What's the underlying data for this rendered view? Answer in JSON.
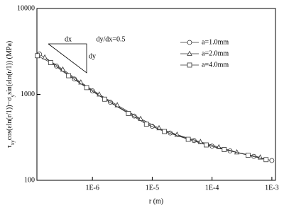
{
  "chart_data": {
    "type": "line",
    "log_x": true,
    "log_y": true,
    "x_label": "r (m)",
    "y_label": [
      "τ",
      "xy",
      "cos(εln(r/1))−σ",
      "y",
      "sin(εln(r/1)) (MPa)"
    ],
    "xlim": [
      1.18e-07,
      0.00115
    ],
    "xticks": [
      {
        "value": 1e-06,
        "label": "1E-6"
      },
      {
        "value": 1e-05,
        "label": "1E-5"
      },
      {
        "value": 0.0001,
        "label": "1E-4"
      },
      {
        "value": 0.001,
        "label": "1E-3"
      }
    ],
    "ylim": [
      100,
      10000
    ],
    "yticks": [
      100,
      1000,
      10000
    ],
    "annotations": [
      "dx",
      "dy",
      "dy/dx=0.5"
    ],
    "legend": "upper right",
    "series": [
      {
        "name": "a=1.0mm",
        "color": "#333333",
        "marker": "circle",
        "x": [
          1.3e-07,
          2.5e-07,
          5e-07,
          1e-06,
          2e-06,
          5e-06,
          1e-05,
          2e-05,
          5e-05,
          0.0001,
          0.0002,
          0.0005,
          0.001
        ],
        "values": [
          2950,
          2140,
          1510,
          1100,
          810,
          560,
          425,
          355,
          290,
          250,
          220,
          190,
          170
        ]
      },
      {
        "name": "a=2.0mm",
        "color": "#333333",
        "marker": "triangle",
        "x": [
          1.6e-07,
          3.2e-07,
          6.4e-07,
          1.3e-06,
          2.6e-06,
          6.4e-06,
          1.3e-05,
          2.6e-05,
          6.4e-05,
          0.00013,
          0.00026,
          0.00064
        ],
        "values": [
          2700,
          1950,
          1380,
          1000,
          750,
          520,
          405,
          340,
          280,
          243,
          212,
          185
        ]
      },
      {
        "name": "a=4.0mm",
        "color": "#333333",
        "marker": "square",
        "x": [
          1.2e-07,
          2e-07,
          4e-07,
          8e-07,
          1.6e-06,
          4e-06,
          8e-06,
          1.6e-05,
          4e-05,
          8e-05,
          0.00016,
          0.0004,
          0.0008
        ],
        "values": [
          2820,
          2350,
          1650,
          1200,
          880,
          600,
          450,
          370,
          300,
          258,
          228,
          196,
          174
        ]
      }
    ]
  }
}
